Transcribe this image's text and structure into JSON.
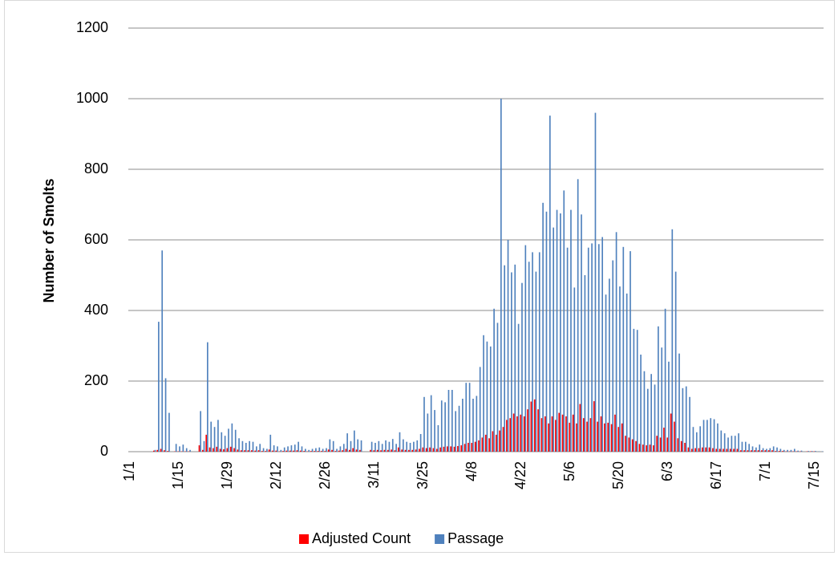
{
  "chart_data": {
    "type": "bar",
    "y_label": "Number of Smolts",
    "categories": [
      "1/1",
      null,
      null,
      null,
      null,
      null,
      null,
      null,
      null,
      null,
      null,
      null,
      null,
      null,
      "1/15",
      null,
      null,
      null,
      null,
      null,
      null,
      null,
      null,
      null,
      null,
      null,
      null,
      null,
      "1/29",
      null,
      null,
      null,
      null,
      null,
      null,
      null,
      null,
      null,
      null,
      null,
      null,
      null,
      "2/12",
      null,
      null,
      null,
      null,
      null,
      null,
      null,
      null,
      null,
      null,
      null,
      null,
      null,
      "2/26",
      null,
      null,
      null,
      null,
      null,
      null,
      null,
      null,
      null,
      null,
      null,
      null,
      null,
      "3/11",
      null,
      null,
      null,
      null,
      null,
      null,
      null,
      null,
      null,
      null,
      null,
      null,
      null,
      "3/25",
      null,
      null,
      null,
      null,
      null,
      null,
      null,
      null,
      null,
      null,
      null,
      null,
      null,
      "4/8",
      null,
      null,
      null,
      null,
      null,
      null,
      null,
      null,
      null,
      null,
      null,
      null,
      null,
      "4/22",
      null,
      null,
      null,
      null,
      null,
      null,
      null,
      null,
      null,
      null,
      null,
      null,
      null,
      "5/6",
      null,
      null,
      null,
      null,
      null,
      null,
      null,
      null,
      null,
      null,
      null,
      null,
      null,
      "5/20",
      null,
      null,
      null,
      null,
      null,
      null,
      null,
      null,
      null,
      null,
      null,
      null,
      null,
      "6/3",
      null,
      null,
      null,
      null,
      null,
      null,
      null,
      null,
      null,
      null,
      null,
      null,
      null,
      "6/17",
      null,
      null,
      null,
      null,
      null,
      null,
      null,
      null,
      null,
      null,
      null,
      null,
      null,
      "7/1",
      null,
      null,
      null,
      null,
      null,
      null,
      null,
      null,
      null,
      null,
      null,
      null,
      null,
      "7/15",
      null,
      null
    ],
    "series": [
      {
        "name": "Adjusted Count",
        "color": "#ff0000",
        "values": [
          0,
          0,
          0,
          0,
          0,
          0,
          0,
          3,
          5,
          8,
          4,
          2,
          0,
          1,
          1,
          1,
          1,
          1,
          0,
          0,
          18,
          5,
          48,
          12,
          10,
          14,
          8,
          7,
          10,
          14,
          10,
          6,
          4,
          4,
          4,
          4,
          3,
          4,
          2,
          2,
          6,
          3,
          3,
          1,
          2,
          3,
          3,
          3,
          4,
          3,
          2,
          1,
          2,
          2,
          2,
          2,
          2,
          6,
          5,
          2,
          3,
          4,
          8,
          5,
          10,
          6,
          5,
          0,
          0,
          5,
          4,
          5,
          4,
          5,
          5,
          6,
          4,
          12,
          6,
          5,
          5,
          5,
          6,
          8,
          12,
          10,
          12,
          10,
          8,
          12,
          14,
          15,
          15,
          14,
          16,
          18,
          22,
          25,
          25,
          28,
          32,
          40,
          48,
          38,
          58,
          48,
          60,
          70,
          90,
          95,
          108,
          100,
          105,
          100,
          120,
          142,
          148,
          120,
          95,
          100,
          80,
          100,
          90,
          110,
          105,
          100,
          82,
          105,
          80,
          135,
          95,
          85,
          95,
          143,
          85,
          100,
          80,
          82,
          78,
          105,
          70,
          80,
          45,
          40,
          35,
          30,
          22,
          20,
          18,
          20,
          18,
          45,
          40,
          68,
          40,
          108,
          85,
          38,
          30,
          25,
          12,
          8,
          10,
          10,
          12,
          12,
          12,
          10,
          8,
          8,
          8,
          8,
          8,
          8,
          8,
          4,
          4,
          4,
          4,
          4,
          4,
          4,
          4,
          4,
          4,
          2,
          2,
          2,
          1,
          1,
          1,
          1,
          1,
          0,
          1,
          1,
          1,
          0,
          0
        ]
      },
      {
        "name": "Passage",
        "color": "#4f81bd",
        "values": [
          0,
          0,
          0,
          0,
          0,
          0,
          0,
          5,
          368,
          570,
          208,
          110,
          0,
          22,
          15,
          20,
          10,
          5,
          0,
          0,
          115,
          30,
          310,
          85,
          70,
          90,
          55,
          45,
          65,
          80,
          62,
          38,
          30,
          25,
          30,
          28,
          15,
          22,
          10,
          8,
          48,
          18,
          15,
          5,
          12,
          15,
          18,
          20,
          28,
          15,
          8,
          5,
          8,
          10,
          12,
          8,
          10,
          35,
          30,
          8,
          15,
          22,
          52,
          30,
          60,
          35,
          32,
          0,
          0,
          28,
          25,
          30,
          22,
          32,
          28,
          36,
          22,
          55,
          35,
          28,
          25,
          28,
          32,
          50,
          155,
          108,
          160,
          118,
          75,
          145,
          140,
          175,
          175,
          115,
          130,
          150,
          195,
          195,
          150,
          158,
          240,
          330,
          312,
          298,
          405,
          365,
          1000,
          528,
          600,
          508,
          530,
          362,
          478,
          585,
          538,
          565,
          510,
          565,
          705,
          680,
          952,
          635,
          685,
          675,
          740,
          578,
          685,
          465,
          772,
          672,
          500,
          578,
          590,
          960,
          588,
          608,
          445,
          490,
          542,
          622,
          468,
          580,
          448,
          568,
          348,
          345,
          275,
          228,
          178,
          220,
          190,
          355,
          295,
          405,
          255,
          630,
          510,
          278,
          180,
          185,
          155,
          70,
          55,
          72,
          90,
          90,
          95,
          92,
          80,
          60,
          52,
          40,
          45,
          45,
          52,
          28,
          28,
          22,
          15,
          12,
          20,
          10,
          8,
          10,
          15,
          12,
          8,
          5,
          5,
          5,
          8,
          3,
          3,
          0,
          2,
          2,
          2,
          1,
          1
        ]
      }
    ],
    "ylim": [
      0,
      1200
    ],
    "yticks": [
      0,
      200,
      400,
      600,
      800,
      1000,
      1200
    ],
    "grid": true,
    "legend": "bottom"
  }
}
